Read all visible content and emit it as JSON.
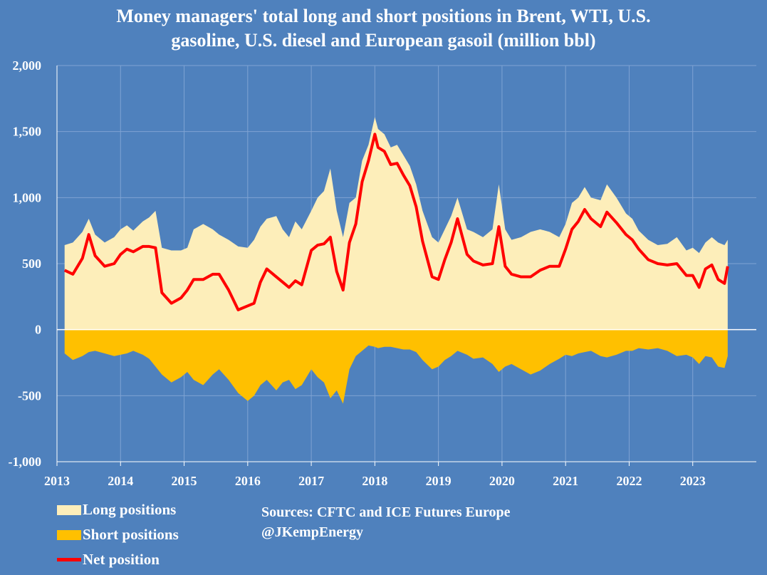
{
  "chart_data": {
    "type": "area",
    "title_line1": "Money managers' total long and short positions in Brent, WTI, U.S.",
    "title_line2": "gasoline, U.S. diesel and European gasoil  (million bbl)",
    "ylim": [
      -1000,
      2000
    ],
    "y_ticks": [
      -1000,
      -500,
      0,
      500,
      1000,
      1500,
      2000
    ],
    "y_tick_labels": [
      "-1,000",
      "-500",
      "0",
      "500",
      "1,000",
      "1,500",
      "2,000"
    ],
    "xlim": [
      2013.0,
      2024.0
    ],
    "x_ticks": [
      2013,
      2014,
      2015,
      2016,
      2017,
      2018,
      2019,
      2020,
      2021,
      2022,
      2023
    ],
    "x_tick_labels": [
      "2013",
      "2014",
      "2015",
      "2016",
      "2017",
      "2018",
      "2019",
      "2020",
      "2021",
      "2022",
      "2023"
    ],
    "series": [
      {
        "name": "Long positions",
        "color": "#fdeeba",
        "x": [
          2013.12,
          2013.25,
          2013.4,
          2013.5,
          2013.6,
          2013.75,
          2013.9,
          2014.0,
          2014.1,
          2014.2,
          2014.35,
          2014.45,
          2014.55,
          2014.65,
          2014.8,
          2014.95,
          2015.05,
          2015.15,
          2015.3,
          2015.45,
          2015.55,
          2015.7,
          2015.85,
          2016.0,
          2016.1,
          2016.2,
          2016.3,
          2016.45,
          2016.55,
          2016.65,
          2016.75,
          2016.85,
          2017.0,
          2017.1,
          2017.2,
          2017.3,
          2017.4,
          2017.5,
          2017.6,
          2017.7,
          2017.8,
          2017.9,
          2018.0,
          2018.05,
          2018.15,
          2018.25,
          2018.35,
          2018.45,
          2018.55,
          2018.65,
          2018.75,
          2018.9,
          2019.0,
          2019.1,
          2019.2,
          2019.3,
          2019.45,
          2019.55,
          2019.7,
          2019.85,
          2019.95,
          2020.05,
          2020.15,
          2020.3,
          2020.45,
          2020.6,
          2020.75,
          2020.9,
          2021.0,
          2021.1,
          2021.2,
          2021.3,
          2021.4,
          2021.55,
          2021.65,
          2021.8,
          2021.95,
          2022.05,
          2022.15,
          2022.3,
          2022.45,
          2022.6,
          2022.75,
          2022.9,
          2023.0,
          2023.1,
          2023.2,
          2023.3,
          2023.4,
          2023.5,
          2023.55
        ],
        "values": [
          640,
          660,
          740,
          840,
          720,
          660,
          700,
          760,
          790,
          750,
          820,
          850,
          900,
          620,
          600,
          600,
          620,
          760,
          800,
          760,
          720,
          680,
          630,
          620,
          680,
          780,
          840,
          860,
          760,
          700,
          820,
          760,
          900,
          1000,
          1050,
          1220,
          900,
          700,
          960,
          1000,
          1280,
          1400,
          1610,
          1520,
          1480,
          1380,
          1400,
          1320,
          1240,
          1100,
          900,
          700,
          660,
          760,
          860,
          1000,
          760,
          740,
          700,
          760,
          1100,
          760,
          680,
          700,
          740,
          760,
          740,
          700,
          800,
          960,
          1000,
          1080,
          1000,
          980,
          1100,
          1000,
          880,
          840,
          750,
          680,
          640,
          650,
          700,
          600,
          620,
          580,
          660,
          700,
          660,
          640,
          680
        ]
      },
      {
        "name": "Short positions",
        "color": "#ffc000",
        "x": [
          2013.12,
          2013.25,
          2013.4,
          2013.5,
          2013.6,
          2013.75,
          2013.9,
          2014.0,
          2014.1,
          2014.2,
          2014.35,
          2014.45,
          2014.55,
          2014.65,
          2014.8,
          2014.95,
          2015.05,
          2015.15,
          2015.3,
          2015.45,
          2015.55,
          2015.7,
          2015.85,
          2016.0,
          2016.1,
          2016.2,
          2016.3,
          2016.45,
          2016.55,
          2016.65,
          2016.75,
          2016.85,
          2017.0,
          2017.1,
          2017.2,
          2017.3,
          2017.4,
          2017.5,
          2017.6,
          2017.7,
          2017.8,
          2017.9,
          2018.0,
          2018.05,
          2018.15,
          2018.25,
          2018.35,
          2018.45,
          2018.55,
          2018.65,
          2018.75,
          2018.9,
          2019.0,
          2019.1,
          2019.2,
          2019.3,
          2019.45,
          2019.55,
          2019.7,
          2019.85,
          2019.95,
          2020.05,
          2020.15,
          2020.3,
          2020.45,
          2020.6,
          2020.75,
          2020.9,
          2021.0,
          2021.1,
          2021.2,
          2021.3,
          2021.4,
          2021.55,
          2021.65,
          2021.8,
          2021.95,
          2022.05,
          2022.15,
          2022.3,
          2022.45,
          2022.6,
          2022.75,
          2022.9,
          2023.0,
          2023.1,
          2023.2,
          2023.3,
          2023.4,
          2023.5,
          2023.55
        ],
        "values": [
          -180,
          -230,
          -200,
          -170,
          -160,
          -180,
          -200,
          -190,
          -180,
          -160,
          -190,
          -220,
          -280,
          -340,
          -400,
          -360,
          -320,
          -380,
          -420,
          -340,
          -300,
          -380,
          -480,
          -540,
          -500,
          -420,
          -380,
          -460,
          -400,
          -380,
          -450,
          -420,
          -300,
          -360,
          -400,
          -520,
          -460,
          -560,
          -300,
          -200,
          -160,
          -120,
          -130,
          -140,
          -130,
          -130,
          -140,
          -150,
          -150,
          -170,
          -230,
          -300,
          -280,
          -230,
          -200,
          -160,
          -190,
          -220,
          -210,
          -260,
          -320,
          -280,
          -260,
          -300,
          -340,
          -310,
          -260,
          -220,
          -190,
          -200,
          -180,
          -170,
          -160,
          -200,
          -210,
          -190,
          -160,
          -160,
          -140,
          -150,
          -140,
          -160,
          -200,
          -190,
          -210,
          -260,
          -200,
          -210,
          -280,
          -290,
          -200
        ]
      },
      {
        "name": "Net position",
        "color": "#ff0000",
        "x": [
          2013.12,
          2013.25,
          2013.4,
          2013.5,
          2013.6,
          2013.75,
          2013.9,
          2014.0,
          2014.1,
          2014.2,
          2014.35,
          2014.45,
          2014.55,
          2014.65,
          2014.8,
          2014.95,
          2015.05,
          2015.15,
          2015.3,
          2015.45,
          2015.55,
          2015.7,
          2015.85,
          2016.0,
          2016.1,
          2016.2,
          2016.3,
          2016.45,
          2016.55,
          2016.65,
          2016.75,
          2016.85,
          2017.0,
          2017.1,
          2017.2,
          2017.3,
          2017.4,
          2017.5,
          2017.6,
          2017.7,
          2017.8,
          2017.9,
          2018.0,
          2018.05,
          2018.15,
          2018.25,
          2018.35,
          2018.45,
          2018.55,
          2018.65,
          2018.75,
          2018.9,
          2019.0,
          2019.1,
          2019.2,
          2019.3,
          2019.45,
          2019.55,
          2019.7,
          2019.85,
          2019.95,
          2020.05,
          2020.15,
          2020.3,
          2020.45,
          2020.6,
          2020.75,
          2020.9,
          2021.0,
          2021.1,
          2021.2,
          2021.3,
          2021.4,
          2021.55,
          2021.65,
          2021.8,
          2021.95,
          2022.05,
          2022.15,
          2022.3,
          2022.45,
          2022.6,
          2022.75,
          2022.9,
          2023.0,
          2023.1,
          2023.2,
          2023.3,
          2023.4,
          2023.5,
          2023.55
        ],
        "values": [
          450,
          420,
          540,
          720,
          560,
          480,
          500,
          570,
          610,
          590,
          630,
          630,
          620,
          280,
          200,
          240,
          300,
          380,
          380,
          420,
          420,
          300,
          150,
          180,
          200,
          360,
          460,
          400,
          360,
          320,
          370,
          340,
          600,
          640,
          650,
          700,
          440,
          300,
          660,
          800,
          1120,
          1280,
          1480,
          1380,
          1350,
          1250,
          1260,
          1170,
          1090,
          930,
          670,
          400,
          380,
          530,
          660,
          840,
          570,
          520,
          490,
          500,
          780,
          480,
          420,
          400,
          400,
          450,
          480,
          480,
          610,
          760,
          820,
          910,
          840,
          780,
          890,
          810,
          720,
          680,
          610,
          530,
          500,
          490,
          500,
          410,
          410,
          320,
          460,
          490,
          380,
          350,
          480
        ]
      }
    ]
  },
  "legend": {
    "long": "Long positions",
    "short": "Short positions",
    "net": "Net position"
  },
  "sources": {
    "line1": "Sources: CFTC and ICE Futures Europe",
    "line2": "@JKempEnergy"
  },
  "colors": {
    "background": "#4f81bd",
    "long": "#fdeeba",
    "short": "#ffc000",
    "net": "#ff0000"
  }
}
